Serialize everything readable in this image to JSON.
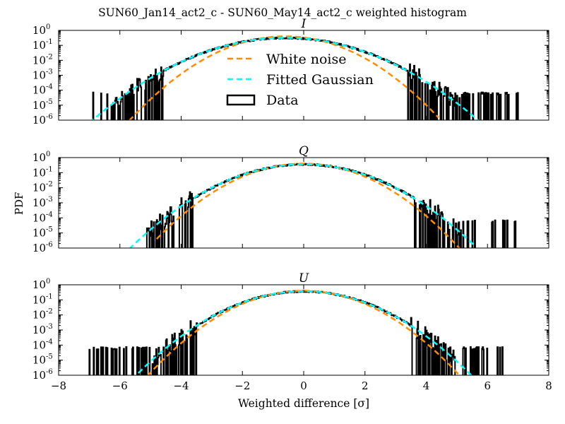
{
  "figure": {
    "title": "SUN60_Jan14_act2_c - SUN60_May14_act2_c weighted histogram",
    "ylabel": "PDF",
    "xlabel": "Weighted difference [σ]"
  },
  "colors": {
    "white_noise": "#ff8c00",
    "fitted_gaussian": "#00ffff",
    "data": "#000000"
  },
  "chart_data": [
    {
      "type": "line",
      "title": "I",
      "yscale": "log",
      "xlim": [
        -8,
        8
      ],
      "ylim": [
        1e-06,
        1
      ],
      "xticks": [
        -8,
        -6,
        -4,
        -2,
        0,
        2,
        4,
        6,
        8
      ],
      "yticks": [
        "10^0",
        "10^-1",
        "10^-2",
        "10^-3",
        "10^-4",
        "10^-5",
        "10^-6"
      ],
      "legend": {
        "placement": "center",
        "entries": [
          "White noise",
          "Fitted Gaussian",
          "Data"
        ]
      },
      "series": [
        {
          "name": "White noise",
          "style": "dashed",
          "mean": -0.6,
          "sigma": 1.0,
          "x_range": [
            -5.7,
            4.4
          ]
        },
        {
          "name": "Fitted Gaussian",
          "style": "dashed",
          "mean": -0.6,
          "sigma": 1.25,
          "x_range": [
            -7.0,
            6.2
          ]
        },
        {
          "name": "Data",
          "style": "histogram",
          "mean": -0.6,
          "sigma": 1.25,
          "x_range": [
            -7.0,
            7.0
          ],
          "floor": 5e-05
        }
      ]
    },
    {
      "type": "line",
      "title": "Q",
      "yscale": "log",
      "xlim": [
        -8,
        8
      ],
      "ylim": [
        1e-06,
        1
      ],
      "xticks": [
        -8,
        -6,
        -4,
        -2,
        0,
        2,
        4,
        6,
        8
      ],
      "yticks": [
        "10^0",
        "10^-1",
        "10^-2",
        "10^-3",
        "10^-4",
        "10^-5",
        "10^-6"
      ],
      "series": [
        {
          "name": "White noise",
          "style": "dashed",
          "mean": 0.0,
          "sigma": 1.0,
          "x_range": [
            -4.8,
            5.1
          ]
        },
        {
          "name": "Fitted Gaussian",
          "style": "dashed",
          "mean": 0.0,
          "sigma": 1.12,
          "x_range": [
            -5.7,
            5.6
          ]
        },
        {
          "name": "Data",
          "style": "histogram",
          "mean": 0.0,
          "sigma": 1.12,
          "x_range": [
            -5.2,
            7.0
          ],
          "floor": 5e-05
        }
      ]
    },
    {
      "type": "line",
      "title": "U",
      "yscale": "log",
      "xlim": [
        -8,
        8
      ],
      "ylim": [
        1e-06,
        1
      ],
      "xticks": [
        -8,
        -6,
        -4,
        -2,
        0,
        2,
        4,
        6,
        8
      ],
      "yticks": [
        "10^0",
        "10^-1",
        "10^-2",
        "10^-3",
        "10^-4",
        "10^-5",
        "10^-6"
      ],
      "series": [
        {
          "name": "White noise",
          "style": "dashed",
          "mean": 0.0,
          "sigma": 1.0,
          "x_range": [
            -5.1,
            5.3
          ]
        },
        {
          "name": "Fitted Gaussian",
          "style": "dashed",
          "mean": 0.0,
          "sigma": 1.08,
          "x_range": [
            -5.4,
            5.7
          ]
        },
        {
          "name": "Data",
          "style": "histogram",
          "mean": 0.0,
          "sigma": 1.08,
          "x_range": [
            -7.0,
            6.5
          ],
          "floor": 5e-05
        }
      ]
    }
  ]
}
